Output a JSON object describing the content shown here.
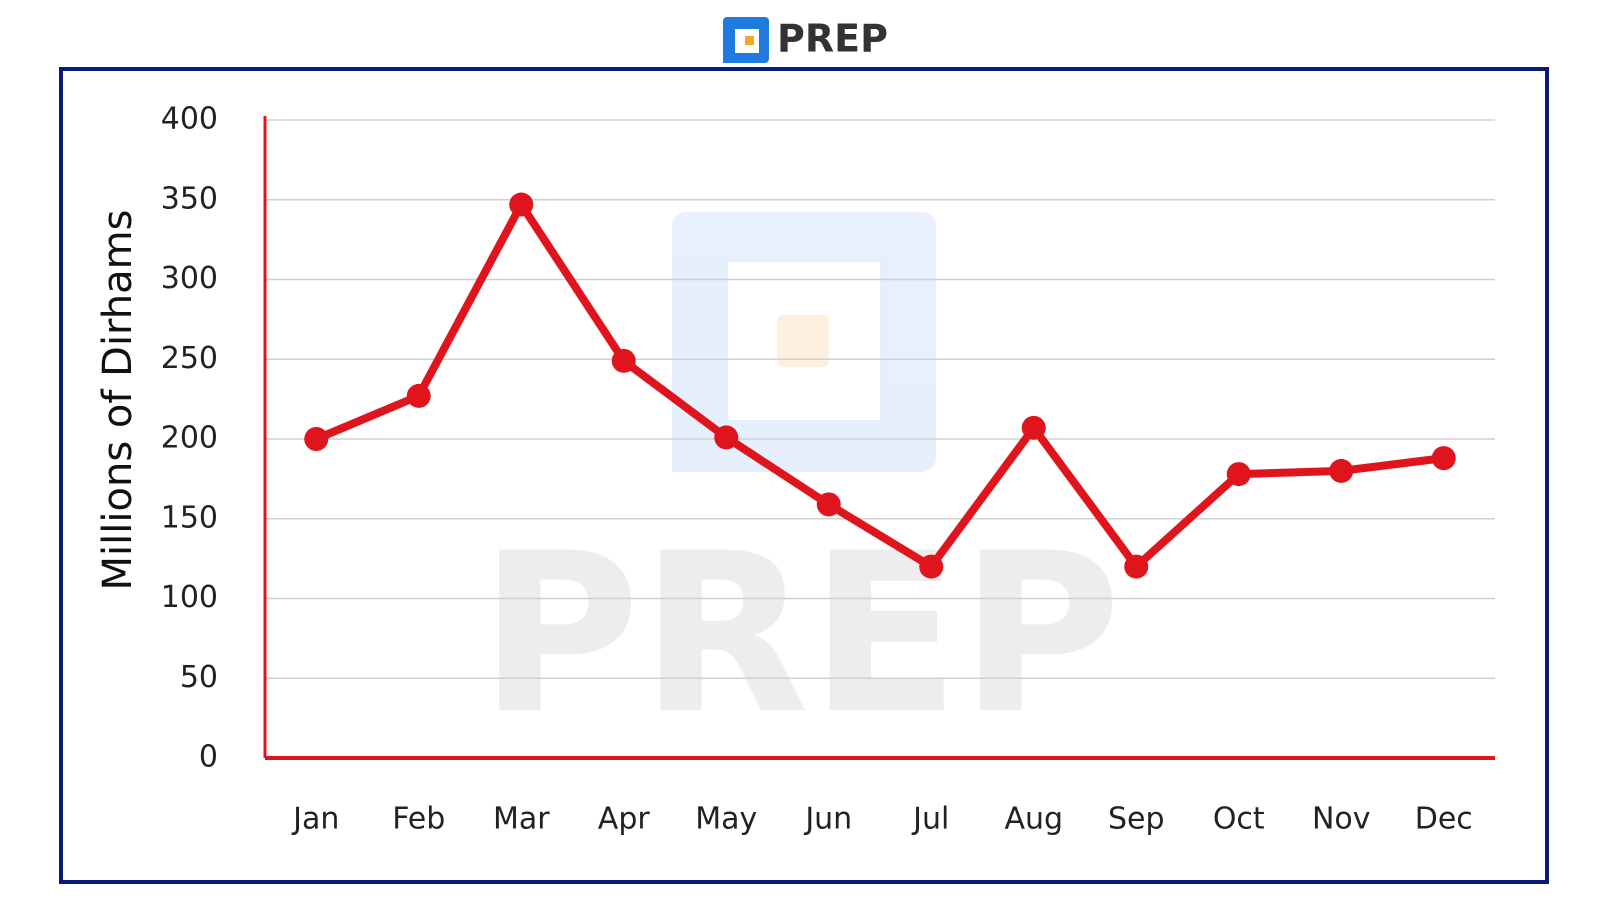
{
  "brand": "PREP",
  "chart_data": {
    "type": "line",
    "y_label": "Millions of  Dirhams",
    "categories": [
      "Jan",
      "Feb",
      "Mar",
      "Apr",
      "May",
      "Jun",
      "Jul",
      "Aug",
      "Sep",
      "Oct",
      "Nov",
      "Dec"
    ],
    "values": [
      200,
      227,
      347,
      249,
      201,
      159,
      120,
      207,
      120,
      178,
      180,
      188
    ],
    "color": "#e0141c",
    "ylim": [
      0,
      400
    ],
    "yticks": [
      0,
      50,
      100,
      150,
      200,
      250,
      300,
      350,
      400
    ],
    "grid": true
  }
}
